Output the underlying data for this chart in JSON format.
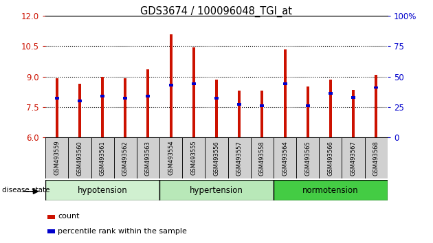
{
  "title": "GDS3674 / 100096048_TGI_at",
  "samples": [
    "GSM493559",
    "GSM493560",
    "GSM493561",
    "GSM493562",
    "GSM493563",
    "GSM493554",
    "GSM493555",
    "GSM493556",
    "GSM493557",
    "GSM493558",
    "GSM493564",
    "GSM493565",
    "GSM493566",
    "GSM493567",
    "GSM493568"
  ],
  "count_values": [
    8.9,
    8.65,
    9.0,
    8.9,
    9.35,
    11.1,
    10.45,
    8.85,
    8.3,
    8.3,
    10.35,
    8.5,
    8.85,
    8.35,
    9.1
  ],
  "percentile_values": [
    32,
    30,
    34,
    32,
    34,
    43,
    44,
    32,
    27,
    26,
    44,
    26,
    36,
    33,
    41
  ],
  "groups": [
    {
      "name": "hypotension",
      "indices": [
        0,
        1,
        2,
        3,
        4
      ],
      "color": "#d0f0d0"
    },
    {
      "name": "hypertension",
      "indices": [
        5,
        6,
        7,
        8,
        9
      ],
      "color": "#b8e8b8"
    },
    {
      "name": "normotension",
      "indices": [
        10,
        11,
        12,
        13,
        14
      ],
      "color": "#44cc44"
    }
  ],
  "ylim_left": [
    6,
    12
  ],
  "ylim_right": [
    0,
    100
  ],
  "yticks_left": [
    6,
    7.5,
    9,
    10.5,
    12
  ],
  "yticks_right": [
    0,
    25,
    50,
    75,
    100
  ],
  "bar_color": "#cc1100",
  "marker_color": "#0000cc",
  "bg_color": "#ffffff",
  "sample_box_color": "#cccccc",
  "legend_count_label": "count",
  "legend_percentile_label": "percentile rank within the sample",
  "disease_state_label": "disease state"
}
